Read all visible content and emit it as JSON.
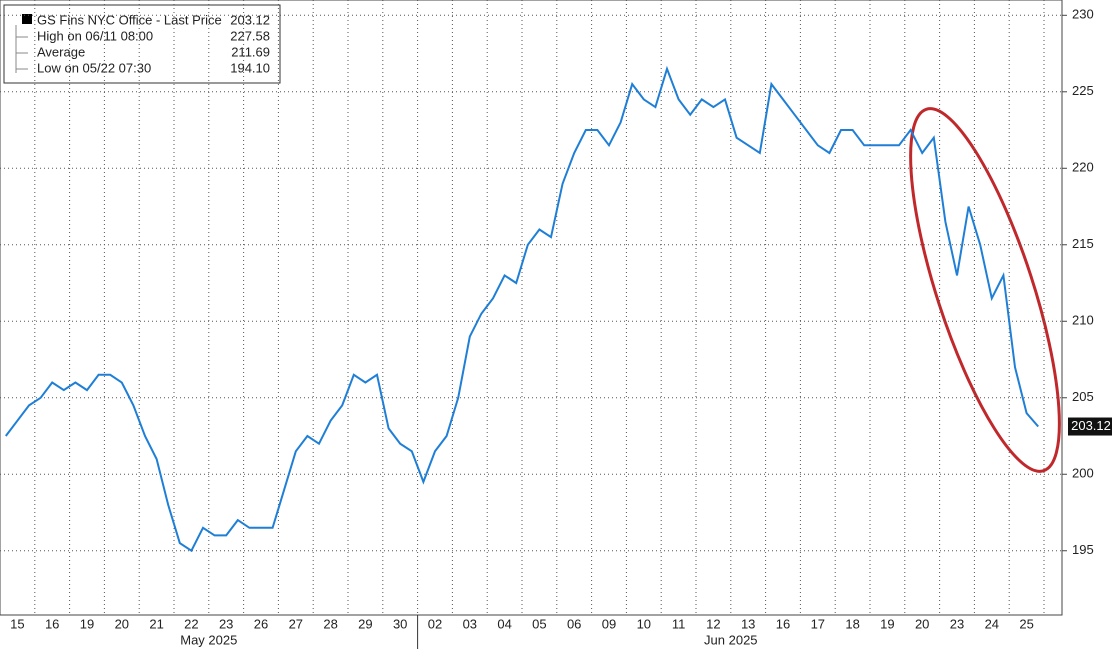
{
  "chart_data": {
    "type": "line",
    "title": "GS Fins NYC Office - Last Price",
    "last_price": 203.12,
    "stats": [
      {
        "name": "High on 06/11 08:00",
        "value": 227.58
      },
      {
        "name": "Average",
        "value": 211.69
      },
      {
        "name": "Low on 05/22 07:30",
        "value": 194.1,
        "label": "194.10"
      }
    ],
    "color": "#1f7fd6",
    "months": [
      "May 2025",
      "Jun 2025"
    ],
    "categories": [
      "15",
      null,
      null,
      "16",
      null,
      null,
      "19",
      null,
      null,
      "20",
      null,
      null,
      "21",
      null,
      null,
      "22",
      null,
      null,
      "23",
      null,
      null,
      "26",
      null,
      null,
      "27",
      null,
      null,
      "28",
      null,
      null,
      "29",
      null,
      null,
      "30",
      null,
      null,
      "02",
      null,
      null,
      "03",
      null,
      null,
      "04",
      null,
      null,
      "05",
      null,
      null,
      "06",
      null,
      null,
      "09",
      null,
      null,
      "10",
      null,
      null,
      "11",
      null,
      null,
      "12",
      null,
      null,
      "13",
      null,
      null,
      "16",
      null,
      null,
      "17",
      null,
      null,
      "18",
      null,
      null,
      "19",
      null,
      null,
      "20",
      null,
      null,
      "23",
      null,
      null,
      "24",
      null,
      null,
      "25",
      null,
      null
    ],
    "values": [
      202.5,
      203.5,
      204.5,
      205,
      206,
      205.5,
      206,
      205.5,
      206.5,
      206.5,
      206,
      204.5,
      202.5,
      201,
      198,
      195.5,
      195,
      196.5,
      196,
      196,
      197,
      196.5,
      196.5,
      196.5,
      199,
      201.5,
      202.5,
      202,
      203.5,
      204.5,
      206.5,
      206,
      206.5,
      203,
      202,
      201.5,
      199.5,
      201.5,
      202.5,
      205,
      209,
      210.5,
      211.5,
      213,
      212.5,
      215,
      216,
      215.5,
      219,
      221,
      222.5,
      222.5,
      221.5,
      223,
      225.5,
      224.5,
      224,
      226.5,
      224.5,
      223.5,
      224.5,
      224,
      224.5,
      222,
      221.5,
      221,
      225.5,
      224.5,
      223.5,
      222.5,
      221.5,
      221,
      222.5,
      222.5,
      221.5,
      221.5,
      221.5,
      221.5,
      222.5,
      221,
      222,
      216.5,
      213,
      217.5,
      215,
      211.5,
      213,
      207,
      204,
      203.12
    ],
    "ylim": [
      190.8,
      231
    ],
    "yticks": [
      195,
      200,
      205,
      210,
      215,
      220,
      225,
      230
    ],
    "grid": true
  }
}
